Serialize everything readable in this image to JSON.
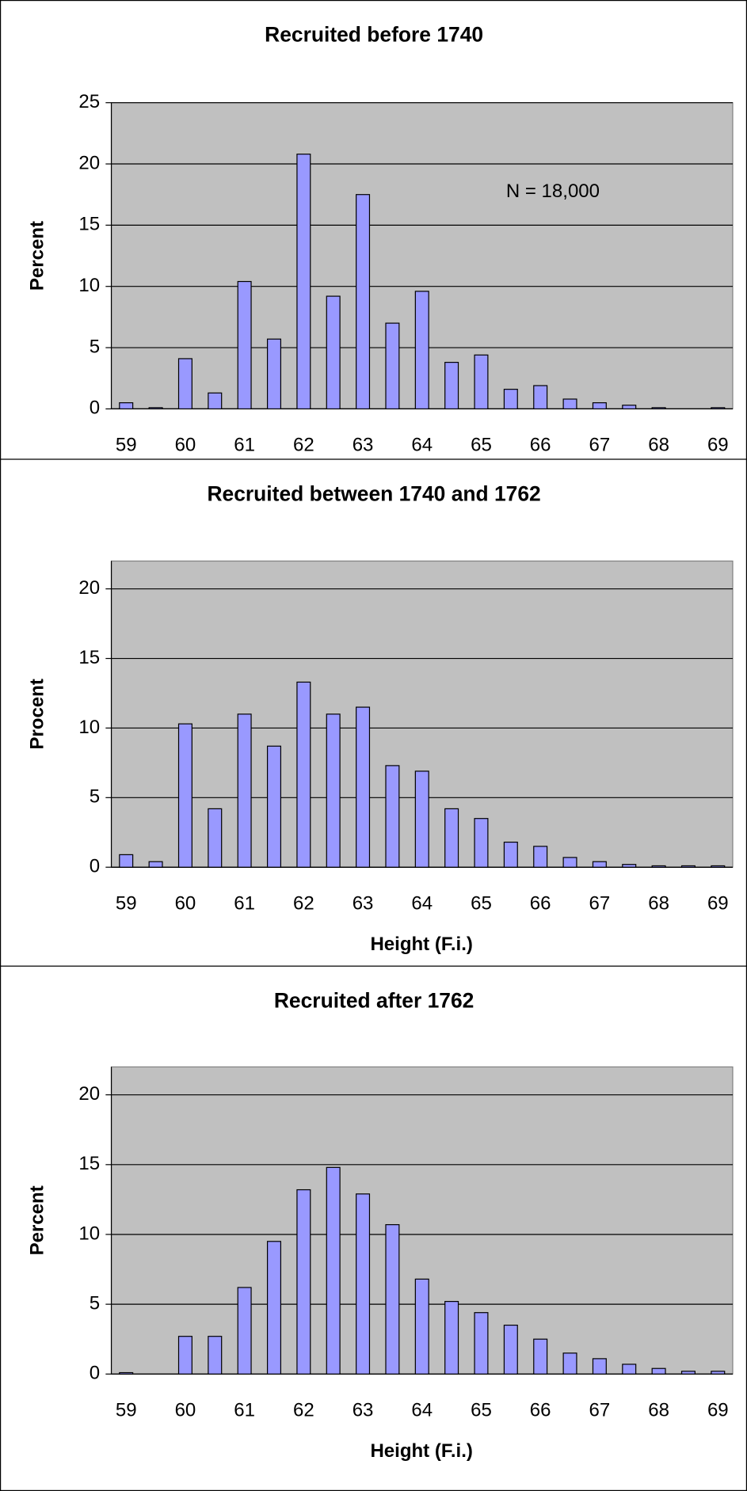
{
  "chart_data": [
    {
      "type": "bar",
      "title": "Recruited before 1740",
      "y_label": "Percent",
      "annotation": "N = 18,000",
      "categories": [
        "59",
        null,
        "60",
        null,
        "61",
        null,
        "62",
        null,
        "63",
        null,
        "64",
        null,
        "65",
        null,
        "66",
        null,
        "67",
        null,
        "68",
        null,
        "69"
      ],
      "values": [
        0.5,
        0.1,
        4.1,
        1.3,
        10.4,
        5.7,
        20.8,
        9.2,
        17.5,
        7.0,
        9.6,
        3.8,
        4.4,
        1.6,
        1.9,
        0.8,
        0.5,
        0.3,
        0.1,
        0,
        0.1
      ],
      "color": "#9999ff",
      "plot_background": "#c0c0c0",
      "ylim": [
        0,
        25
      ],
      "yticks": [
        0,
        5,
        10,
        15,
        20,
        25
      ],
      "grid": true
    },
    {
      "type": "bar",
      "title": "Recruited between 1740 and 1762",
      "y_label": "Procent",
      "x_label": "Height (F.i.)",
      "categories": [
        "59",
        null,
        "60",
        null,
        "61",
        null,
        "62",
        null,
        "63",
        null,
        "64",
        null,
        "65",
        null,
        "66",
        null,
        "67",
        null,
        "68",
        null,
        "69"
      ],
      "values": [
        0.9,
        0.4,
        10.3,
        4.2,
        11.0,
        8.7,
        13.3,
        11.0,
        11.5,
        7.3,
        6.9,
        4.2,
        3.5,
        1.8,
        1.5,
        0.7,
        0.4,
        0.2,
        0.1,
        0.1,
        0.1
      ],
      "color": "#9999ff",
      "plot_background": "#c0c0c0",
      "ylim": [
        0,
        22
      ],
      "yticks": [
        0,
        5,
        10,
        15,
        20
      ],
      "grid": true
    },
    {
      "type": "bar",
      "title": "Recruited after 1762",
      "y_label": "Percent",
      "x_label": "Height (F.i.)",
      "categories": [
        "59",
        null,
        "60",
        null,
        "61",
        null,
        "62",
        null,
        "63",
        null,
        "64",
        null,
        "65",
        null,
        "66",
        null,
        "67",
        null,
        "68",
        null,
        "69"
      ],
      "values": [
        0.1,
        0,
        2.7,
        2.7,
        6.2,
        9.5,
        13.2,
        14.8,
        12.9,
        10.7,
        6.8,
        5.2,
        4.4,
        3.5,
        2.5,
        1.5,
        1.1,
        0.7,
        0.4,
        0.2,
        0.2
      ],
      "color": "#9999ff",
      "plot_background": "#c0c0c0",
      "ylim": [
        0,
        22
      ],
      "yticks": [
        0,
        5,
        10,
        15,
        20
      ],
      "grid": true
    }
  ]
}
